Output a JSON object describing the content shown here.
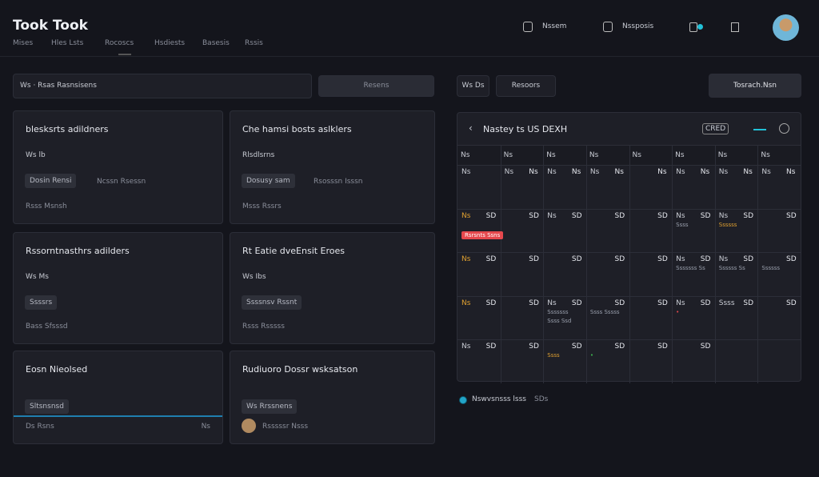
{
  "header": {
    "title": "Took Took",
    "tabs": [
      "Mises",
      "Hles Lsts",
      "Rocoscs",
      "Hsdiests",
      "Basesis",
      "Rssis"
    ],
    "actions": [
      "Nssem",
      "Nssposis"
    ]
  },
  "toolbar": {
    "search": "Ws · Rsas Rasnsisens",
    "button": "Resens",
    "filters": [
      "Ws Ds",
      "Resoors"
    ],
    "primary": "Tosrach.Nsn"
  },
  "cards": [
    {
      "title": "blesksrts adildners",
      "meta": "Ws lb",
      "tag": "Dosin Rensi",
      "note": "Ncssn Rsessn",
      "footer": "Rsss Msnsh"
    },
    {
      "title": "Che hamsi bosts aslklers",
      "meta": "Rlsdlsrns",
      "tag": "Dosusy sam",
      "note": "Rsosssn Isssn",
      "footer": "Msss Rssrs"
    },
    {
      "title": "Rssorntnasthrs adilders",
      "meta": "Ws Ms",
      "tag": "Ssssrs",
      "footer": "Bass Sfsssd"
    },
    {
      "title": "Rt Eatie dveEnsit Eroes",
      "meta": "Ws Ibs",
      "tag": "Ssssnsv Rssnt",
      "footer": "Rsss Rsssss"
    },
    {
      "title": "Eosn Nieolsed",
      "tag": "Sltsnsnsd",
      "footer": "Ds Rsns",
      "footer_right": "Ns"
    },
    {
      "title": "Rudiuoro Dossr wsksatson",
      "tag": "Ws Rrssnens",
      "footer": "Rsssssr Nsss"
    }
  ],
  "calendar": {
    "title": "Nastey ts US DEXH",
    "badge": "CRED",
    "day_headers": [
      "Ns",
      "Ns",
      "Ns",
      "Ns",
      "Ns",
      "Ns",
      "Ns",
      "Ns"
    ],
    "weeks": [
      [
        {
          "day": "Ns",
          "num": ""
        },
        {
          "day": "Ns",
          "num": "Ns"
        },
        {
          "day": "Ns",
          "num": "Ns"
        },
        {
          "day": "Ns",
          "num": "Ns"
        },
        {
          "day": "",
          "num": "Ns"
        },
        {
          "day": "Ns",
          "num": "Ns"
        },
        {
          "day": "Ns",
          "num": "Ns"
        },
        {
          "day": "Ns",
          "num": "Ns"
        }
      ],
      [
        {
          "day": "Ns",
          "num": "SD",
          "events": [
            {
              "text": "Rsrsnts Ssns",
              "color": "#e5484d",
              "badge": true
            }
          ]
        },
        {
          "day": "",
          "num": "SD"
        },
        {
          "day": "Ns",
          "num": "SD"
        },
        {
          "day": "",
          "num": "SD"
        },
        {
          "day": "",
          "num": "SD"
        },
        {
          "day": "Ns",
          "num": "SD",
          "events": [
            {
              "text": "Ssss",
              "color": "#9aa0ad"
            }
          ]
        },
        {
          "day": "Ns",
          "num": "SD",
          "events": [
            {
              "text": "Ssssss",
              "color": "#e0a030"
            }
          ]
        },
        {
          "day": "",
          "num": "SD"
        }
      ],
      [
        {
          "day": "Ns",
          "num": "SD"
        },
        {
          "day": "",
          "num": "SD"
        },
        {
          "day": "",
          "num": "SD"
        },
        {
          "day": "",
          "num": "SD"
        },
        {
          "day": "",
          "num": "SD"
        },
        {
          "day": "Ns",
          "num": "SD",
          "events": [
            {
              "text": "Sssssss Ss",
              "color": "#9aa0ad"
            }
          ]
        },
        {
          "day": "Ns",
          "num": "SD",
          "events": [
            {
              "text": "Ssssss Ss",
              "color": "#9aa0ad"
            }
          ]
        },
        {
          "day": "",
          "num": "SD",
          "events": [
            {
              "text": "Ssssss",
              "color": "#9aa0ad"
            }
          ]
        }
      ],
      [
        {
          "day": "Ns",
          "num": "SD"
        },
        {
          "day": "",
          "num": "SD"
        },
        {
          "day": "Ns",
          "num": "SD",
          "events": [
            {
              "text": "Sssssss",
              "color": "#9aa0ad"
            },
            {
              "text": "Ssss Ssd",
              "color": "#9aa0ad"
            }
          ]
        },
        {
          "day": "",
          "num": "SD",
          "events": [
            {
              "text": "Ssss Sssss",
              "color": "#9aa0ad"
            }
          ]
        },
        {
          "day": "",
          "num": "SD"
        },
        {
          "day": "Ns",
          "num": "SD",
          "events": [
            {
              "text": "•",
              "color": "#e5484d"
            }
          ]
        },
        {
          "day": "Ssss",
          "num": "SD"
        },
        {
          "day": "",
          "num": "SD"
        }
      ],
      [
        {
          "day": "Ns",
          "num": "SD"
        },
        {
          "day": "",
          "num": "SD"
        },
        {
          "day": "",
          "num": "SD",
          "events": [
            {
              "text": "Ssss",
              "color": "#e0a030"
            }
          ]
        },
        {
          "day": "",
          "num": "SD",
          "events": [
            {
              "text": "•",
              "color": "#3fb950"
            }
          ]
        },
        {
          "day": "",
          "num": "SD"
        },
        {
          "day": "",
          "num": "SD"
        },
        {
          "day": "",
          "num": ""
        },
        {
          "day": "",
          "num": ""
        }
      ]
    ],
    "legend": "Nswvsnsss lsss",
    "legend_note": "SDs"
  }
}
